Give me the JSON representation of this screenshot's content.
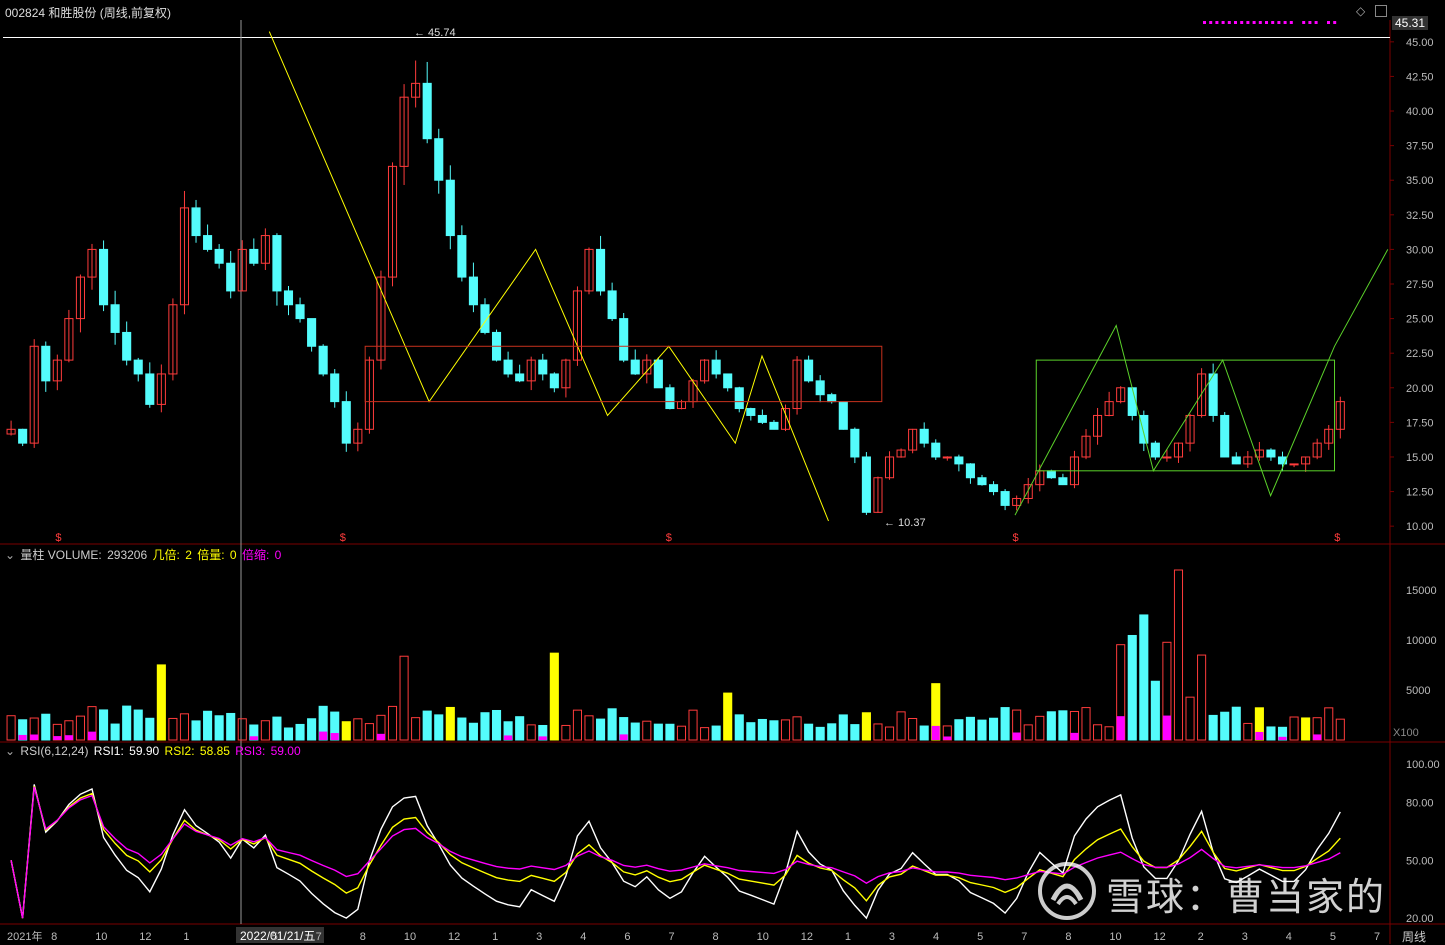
{
  "header": {
    "title": "002824 和胜股份 (周线,前复权)",
    "price_tag": "45.31"
  },
  "volume_header": {
    "label": "量柱 VOLUME:",
    "value": "293206",
    "item1_label": "几倍:",
    "item1_value": "2",
    "item2_label": "倍量:",
    "item2_value": "0",
    "item3_label": "倍缩:",
    "item3_value": "0"
  },
  "rsi_header": {
    "label": "RSI(6,12,24)",
    "rsi1_label": "RSI1:",
    "rsi1_value": "59.90",
    "rsi2_label": "RSI2:",
    "rsi2_value": "58.85",
    "rsi3_label": "RSI3:",
    "rsi3_value": "59.00"
  },
  "scale_label": "X100",
  "period_label": "周线",
  "cursor_date": "2022/01/21/五",
  "watermark": "雪球：曹当家的",
  "colors": {
    "up": "#ff3c3c",
    "down": "#54fcfc",
    "yellow": "#ffff00",
    "magenta": "#ff00ff",
    "white": "#ffffff",
    "grid": "#7a0000",
    "green": "#5bd22a",
    "box_red": "#c8321e"
  },
  "chart_data": [
    {
      "type": "candlestick",
      "name": "price",
      "ylim": [
        9,
        46
      ],
      "y_ticks": [
        "10.00",
        "12.50",
        "15.00",
        "17.50",
        "20.00",
        "22.50",
        "25.00",
        "27.50",
        "30.00",
        "32.50",
        "35.00",
        "37.50",
        "40.00",
        "42.50",
        "45.00"
      ],
      "annotations": {
        "high": "45.74",
        "low": "10.37"
      },
      "dividend_marker": "$",
      "closes": [
        17,
        16,
        23,
        20.5,
        22,
        25,
        28,
        30,
        26,
        24,
        22,
        21,
        18.8,
        21,
        26,
        33,
        31,
        30,
        29,
        27,
        30,
        29,
        31,
        27,
        26,
        25,
        23,
        21,
        19,
        16,
        17,
        22,
        28,
        36,
        41,
        42,
        38,
        35,
        31,
        28,
        26,
        24,
        22,
        21,
        20.5,
        22,
        21,
        20,
        22,
        27,
        30,
        27,
        25,
        22,
        21,
        22,
        20,
        18.5,
        19,
        20.5,
        22,
        21,
        20,
        18.5,
        18,
        17.5,
        17,
        18.5,
        22,
        20.5,
        19.5,
        19,
        17,
        15,
        11,
        13.5,
        15,
        15.5,
        17,
        16,
        15,
        15,
        14.5,
        13.5,
        13,
        12.5,
        11.5,
        12,
        13,
        14,
        13.5,
        13,
        15,
        16.5,
        18,
        19,
        20,
        18,
        16,
        15,
        15,
        16,
        18,
        21,
        18,
        15,
        14.5,
        15,
        15.5,
        15,
        14.5,
        14.5,
        15,
        16,
        17,
        19
      ],
      "x_tick_labels": [
        "2021年",
        "8",
        "10",
        "12",
        "1",
        "2022/01/21/五",
        "5",
        "7",
        "8",
        "10",
        "12",
        "1",
        "3",
        "4",
        "6",
        "7",
        "8",
        "10",
        "12",
        "1",
        "3",
        "4",
        "5",
        "7",
        "8",
        "10",
        "12",
        "2",
        "3",
        "4",
        "5",
        "7"
      ],
      "lines": [
        [
          [
            0.1,
            45.74
          ],
          [
            0.16,
            19
          ],
          [
            0.2,
            30
          ],
          [
            0.227,
            18
          ],
          [
            0.25,
            23
          ],
          [
            0.275,
            16
          ],
          [
            0.285,
            22.3
          ],
          [
            0.31,
            10.37
          ]
        ],
        [
          [
            0.38,
            10.8
          ],
          [
            0.418,
            24.5
          ],
          [
            0.432,
            14
          ],
          [
            0.458,
            22
          ],
          [
            0.476,
            12.2
          ],
          [
            0.5,
            23
          ],
          [
            0.52,
            30
          ]
        ]
      ],
      "boxes": [
        {
          "x0": 0.136,
          "x1": 0.33,
          "y0": 19,
          "y1": 23
        },
        {
          "x0": 0.388,
          "x1": 0.5,
          "y0": 14,
          "y1": 22
        }
      ]
    },
    {
      "type": "bar",
      "name": "volume",
      "ylim": [
        0,
        18000
      ],
      "y_ticks": [
        "5000",
        "10000",
        "15000"
      ],
      "series_hint": "weekly volume bars (x100), highlighted yellow = multiple-volume weeks"
    },
    {
      "type": "line",
      "name": "rsi",
      "ylim": [
        18,
        102
      ],
      "y_ticks": [
        "20.00",
        "50.00",
        "80.00",
        "100.00"
      ],
      "series": [
        {
          "name": "RSI1",
          "color": "#ffffff"
        },
        {
          "name": "RSI2",
          "color": "#ffff00"
        },
        {
          "name": "RSI3",
          "color": "#ff00ff"
        }
      ]
    }
  ]
}
